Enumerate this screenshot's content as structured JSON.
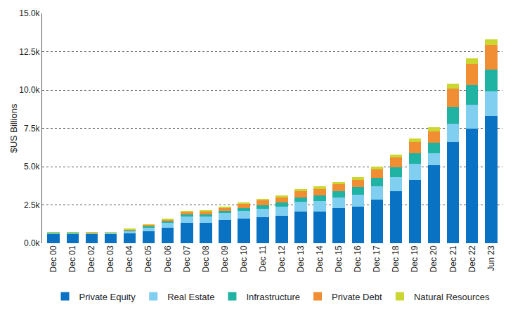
{
  "chart_data": {
    "type": "bar",
    "stacked": true,
    "grid": true,
    "legend": "bottom",
    "y_label": "$US Billions",
    "categories": [
      "Dec 00",
      "Dec 01",
      "Dec 02",
      "Dec 03",
      "Dec 04",
      "Dec 05",
      "Dec 06",
      "Dec 07",
      "Dec 08",
      "Dec 09",
      "Dec 10",
      "Dec 11",
      "Dec 12",
      "Dec 13",
      "Dec 14",
      "Dec 15",
      "Dec 16",
      "Dec 17",
      "Dec 18",
      "Dec 19",
      "Dec 20",
      "Dec 21",
      "Dec 22",
      "Jun 23"
    ],
    "ylim": [
      0,
      15000
    ],
    "yticks": [
      {
        "value": 0,
        "label": "0.0k"
      },
      {
        "value": 2500,
        "label": "2.5k"
      },
      {
        "value": 5000,
        "label": "5.0k"
      },
      {
        "value": 7500,
        "label": "7.5k"
      },
      {
        "value": 10000,
        "label": "10.0k"
      },
      {
        "value": 12500,
        "label": "12.5k"
      },
      {
        "value": 15000,
        "label": "15.0k"
      }
    ],
    "series": [
      {
        "name": "Private Equity",
        "color": "#0a72c2",
        "values": [
          600,
          600,
          600,
          620,
          650,
          800,
          1000,
          1350,
          1350,
          1500,
          1600,
          1700,
          1800,
          2050,
          2050,
          2300,
          2400,
          2850,
          3400,
          4150,
          5100,
          6600,
          7500,
          8300
        ]
      },
      {
        "name": "Real Estate",
        "color": "#80cff0",
        "values": [
          80,
          80,
          70,
          70,
          150,
          250,
          350,
          400,
          400,
          450,
          500,
          550,
          600,
          650,
          700,
          700,
          750,
          850,
          900,
          1050,
          750,
          1200,
          1550,
          1600
        ]
      },
      {
        "name": "Infrastructure",
        "color": "#20b3a3",
        "values": [
          10,
          10,
          10,
          10,
          30,
          50,
          80,
          120,
          120,
          150,
          200,
          250,
          250,
          300,
          350,
          400,
          500,
          550,
          650,
          650,
          700,
          1100,
          1250,
          1450
        ]
      },
      {
        "name": "Private Debt",
        "color": "#f18d33",
        "values": [
          20,
          20,
          20,
          20,
          80,
          100,
          120,
          150,
          200,
          200,
          250,
          300,
          350,
          400,
          450,
          450,
          500,
          550,
          650,
          750,
          750,
          1200,
          1400,
          1600
        ]
      },
      {
        "name": "Natural Resources",
        "color": "#cbd631",
        "values": [
          10,
          10,
          10,
          10,
          20,
          30,
          50,
          80,
          80,
          100,
          100,
          100,
          120,
          150,
          150,
          150,
          150,
          200,
          200,
          250,
          250,
          300,
          350,
          350
        ]
      }
    ]
  }
}
